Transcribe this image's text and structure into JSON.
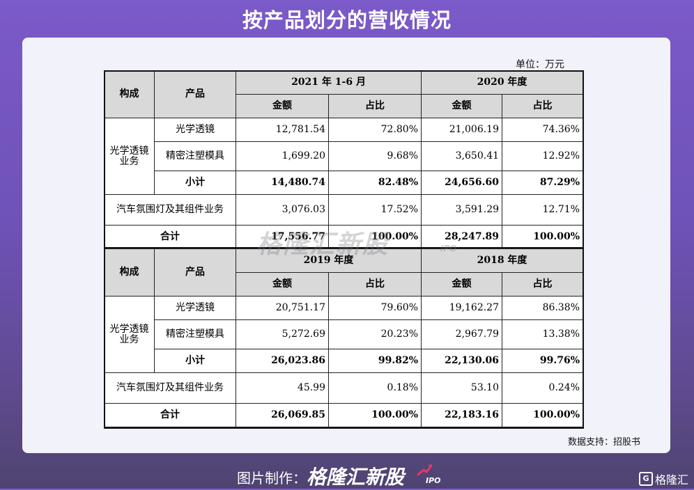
{
  "title": "按产品划分的营收情况",
  "unit": "单位：万元",
  "watermark": "格隆汇新股",
  "watermark_sub": "IPO",
  "source": "数据支持：招股书",
  "footer": {
    "made_by": "图片制作：",
    "brand": "格隆汇新股",
    "brand_sub": "IPO",
    "corner_logo": "格隆汇",
    "corner_logo_icon": "G"
  },
  "table": {
    "col_composition": "构成",
    "col_product": "产品",
    "amount": "金额",
    "share": "占比",
    "sections": [
      {
        "periods": [
          "2021 年 1-6 月",
          "2020 年度"
        ],
        "group_label": "光学透镜业务",
        "rows": [
          {
            "product": "光学透镜",
            "v": [
              "12,781.54",
              "72.80%",
              "21,006.19",
              "74.36%"
            ]
          },
          {
            "product": "精密注塑模具",
            "v": [
              "1,699.20",
              "9.68%",
              "3,650.41",
              "12.92%"
            ]
          }
        ],
        "subtotal": {
          "label": "小计",
          "v": [
            "14,480.74",
            "82.48%",
            "24,656.60",
            "87.29%"
          ]
        },
        "other": {
          "label": "汽车氛围灯及其组件业务",
          "v": [
            "3,076.03",
            "17.52%",
            "3,591.29",
            "12.71%"
          ]
        },
        "total": {
          "label": "合计",
          "v": [
            "17,556.77",
            "100.00%",
            "28,247.89",
            "100.00%"
          ]
        }
      },
      {
        "periods": [
          "2019 年度",
          "2018 年度"
        ],
        "group_label": "光学透镜业务",
        "rows": [
          {
            "product": "光学透镜",
            "v": [
              "20,751.17",
              "79.60%",
              "19,162.27",
              "86.38%"
            ]
          },
          {
            "product": "精密注塑模具",
            "v": [
              "5,272.69",
              "20.23%",
              "2,967.79",
              "13.38%"
            ]
          }
        ],
        "subtotal": {
          "label": "小计",
          "v": [
            "26,023.86",
            "99.82%",
            "22,130.06",
            "99.76%"
          ]
        },
        "other": {
          "label": "汽车氛围灯及其组件业务",
          "v": [
            "45.99",
            "0.18%",
            "53.10",
            "0.24%"
          ]
        },
        "total": {
          "label": "合计",
          "v": [
            "26,069.85",
            "100.00%",
            "22,183.16",
            "100.00%"
          ]
        }
      }
    ]
  }
}
